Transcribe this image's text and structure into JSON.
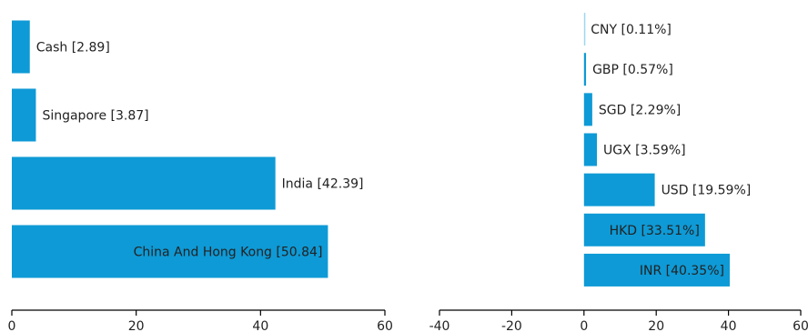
{
  "chart_data": [
    {
      "type": "bar",
      "orientation": "horizontal",
      "categories": [
        "Cash",
        "Singapore",
        "India",
        "China And Hong Kong"
      ],
      "values": [
        2.89,
        3.87,
        42.39,
        50.84
      ],
      "data_labels": [
        "Cash [2.89]",
        "Singapore [3.87]",
        "India [42.39]",
        "China And Hong Kong [50.84]"
      ],
      "xlim": [
        0,
        60
      ],
      "xticks": [
        "0",
        "20",
        "40",
        "60"
      ],
      "title": "",
      "xlabel": "",
      "ylabel": "",
      "grid": false,
      "legend": "none",
      "bar_color": "#0e9ad6"
    },
    {
      "type": "bar",
      "orientation": "horizontal",
      "categories": [
        "CNY",
        "GBP",
        "SGD",
        "UGX",
        "USD",
        "HKD",
        "INR"
      ],
      "values": [
        0.11,
        0.57,
        2.29,
        3.59,
        19.59,
        33.51,
        40.35
      ],
      "data_labels": [
        "CNY [0.11%]",
        "GBP [0.57%]",
        "SGD [2.29%]",
        "UGX [3.59%]",
        "USD [19.59%]",
        "HKD [33.51%]",
        "INR [40.35%]"
      ],
      "xlim": [
        -40,
        60
      ],
      "xticks": [
        "-40",
        "-20",
        "0",
        "20",
        "40",
        "60"
      ],
      "title": "",
      "xlabel": "",
      "ylabel": "",
      "grid": false,
      "legend": "none",
      "bar_color": "#0e9ad6",
      "highlight_color": "#9fd7ee"
    }
  ]
}
